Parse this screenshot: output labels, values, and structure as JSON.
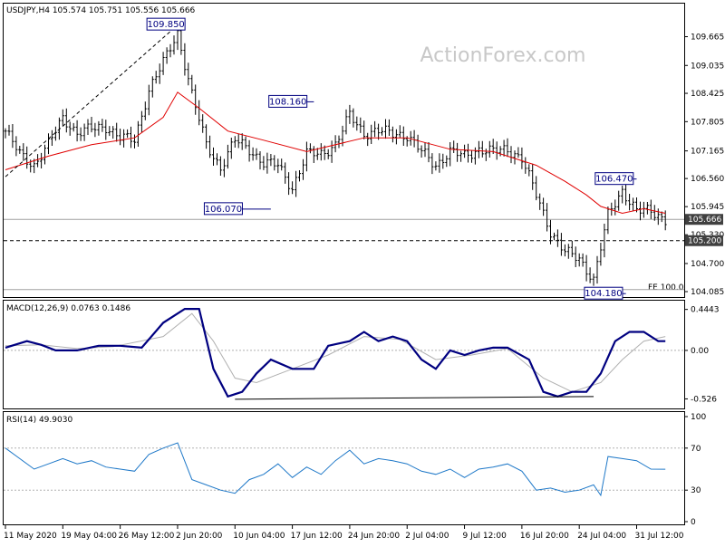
{
  "watermark": "ActionForex.com",
  "price_header": "USDJPY,H4  105.574 105.751 105.556 105.666",
  "macd_header": "MACD(12,26,9) 0.0763 0.1486",
  "rsi_header": "RSI(14) 49.9030",
  "price_axis_ticks": [
    "109.665",
    "109.035",
    "108.425",
    "107.805",
    "107.165",
    "106.560",
    "105.945",
    "105.330",
    "104.700",
    "104.085"
  ],
  "price_tags": {
    "current": "105.666",
    "level": "105.200"
  },
  "fe_label": "FE 100.0",
  "macd_axis_ticks": [
    "0.4443",
    "0.00",
    "-0.526"
  ],
  "rsi_axis_ticks": [
    "100",
    "70",
    "30",
    "0"
  ],
  "x_axis_labels": [
    "11 May 2020",
    "19 May 04:00",
    "26 May 12:00",
    "2 Jun 20:00",
    "10 Jun 04:00",
    "17 Jun 12:00",
    "24 Jun 20:00",
    "2 Jul 04:00",
    "9 Jul 12:00",
    "16 Jul 20:00",
    "24 Jul 04:00",
    "31 Jul 12:00"
  ],
  "callouts": [
    "109.850",
    "108.160",
    "106.070",
    "106.470",
    "104.180"
  ],
  "colors": {
    "ema": "#e00000",
    "macd": "#000080",
    "signal": "#b0b0b0",
    "rsi": "#1e78c8",
    "callout": "#000080"
  },
  "chart_data": {
    "type": "line",
    "title": "USDJPY,H4",
    "ohlc": {
      "open": 105.574,
      "high": 105.751,
      "low": 105.556,
      "close": 105.666
    },
    "ylim": [
      104.085,
      110.19
    ],
    "price_anchors": {
      "x": [
        0,
        4,
        8,
        12,
        16,
        20,
        24,
        28,
        32,
        36,
        40,
        44,
        48,
        52,
        56,
        60,
        64,
        68,
        72,
        76,
        80,
        84,
        88,
        92,
        96,
        100,
        104,
        108,
        112,
        116,
        120,
        124,
        128,
        132,
        136,
        140,
        144,
        148,
        152,
        156,
        160,
        164,
        168,
        172,
        176,
        180,
        184
      ],
      "y": [
        107.6,
        107.1,
        106.85,
        107.3,
        107.9,
        107.55,
        107.65,
        107.7,
        107.45,
        107.4,
        108.5,
        109.1,
        109.75,
        108.4,
        107.3,
        106.8,
        107.4,
        107.2,
        106.9,
        106.85,
        106.35,
        107.1,
        107.1,
        107.3,
        107.95,
        107.55,
        107.6,
        107.55,
        107.5,
        107.15,
        106.85,
        107.15,
        107.05,
        107.2,
        107.15,
        107.2,
        107.0,
        106.2,
        105.4,
        104.95,
        104.8,
        104.35,
        105.75,
        106.3,
        105.85,
        105.85,
        105.666
      ]
    },
    "ema": {
      "x": [
        0,
        12,
        24,
        36,
        44,
        48,
        54,
        62,
        72,
        84,
        100,
        112,
        124,
        136,
        148,
        156,
        162,
        166,
        172,
        178,
        184
      ],
      "y": [
        106.75,
        107.05,
        107.3,
        107.45,
        107.9,
        108.45,
        108.1,
        107.6,
        107.4,
        107.15,
        107.45,
        107.45,
        107.2,
        107.15,
        106.85,
        106.5,
        106.2,
        105.95,
        105.8,
        105.9,
        105.8
      ]
    },
    "callouts": [
      {
        "label": "109.850",
        "value": 109.85
      },
      {
        "label": "108.160",
        "value": 108.16
      },
      {
        "label": "106.070",
        "value": 106.07
      },
      {
        "label": "106.470",
        "value": 106.47
      },
      {
        "label": "104.180",
        "value": 104.18
      }
    ],
    "reference_levels": {
      "horizontal_dashed": 105.2,
      "current_line": 105.666
    },
    "macd": {
      "ylim": [
        -0.6,
        0.5
      ],
      "main": {
        "x": [
          0,
          6,
          10,
          14,
          20,
          26,
          32,
          38,
          44,
          50,
          54,
          58,
          62,
          66,
          70,
          74,
          80,
          86,
          90,
          96,
          100,
          104,
          108,
          112,
          116,
          120,
          124,
          128,
          132,
          136,
          140,
          146,
          150,
          154,
          158,
          162,
          166,
          170,
          174,
          178,
          182,
          184
        ],
        "y": [
          0.03,
          0.1,
          0.06,
          0.0,
          0.0,
          0.05,
          0.05,
          0.03,
          0.3,
          0.45,
          0.45,
          -0.2,
          -0.5,
          -0.45,
          -0.25,
          -0.1,
          -0.2,
          -0.2,
          0.05,
          0.1,
          0.2,
          0.1,
          0.15,
          0.1,
          -0.1,
          -0.2,
          0.0,
          -0.05,
          0.0,
          0.03,
          0.03,
          -0.1,
          -0.45,
          -0.5,
          -0.45,
          -0.45,
          -0.25,
          0.1,
          0.2,
          0.2,
          0.1,
          0.1
        ]
      },
      "signal": {
        "x": [
          0,
          10,
          20,
          30,
          44,
          52,
          58,
          64,
          70,
          80,
          90,
          100,
          110,
          120,
          130,
          140,
          150,
          158,
          166,
          172,
          178,
          184
        ],
        "y": [
          0.05,
          0.06,
          0.02,
          0.04,
          0.15,
          0.4,
          0.1,
          -0.3,
          -0.35,
          -0.2,
          -0.05,
          0.15,
          0.12,
          -0.1,
          -0.05,
          0.02,
          -0.3,
          -0.45,
          -0.35,
          -0.1,
          0.1,
          0.15
        ]
      },
      "trendline": {
        "x": [
          64,
          164
        ],
        "y": [
          -0.53,
          -0.5
        ]
      }
    },
    "rsi": {
      "ylim": [
        0,
        100
      ],
      "levels": [
        70,
        30
      ],
      "values": {
        "x": [
          0,
          4,
          8,
          12,
          16,
          20,
          24,
          28,
          32,
          36,
          40,
          44,
          48,
          52,
          56,
          60,
          64,
          68,
          72,
          76,
          80,
          84,
          88,
          92,
          96,
          100,
          104,
          108,
          112,
          116,
          120,
          124,
          128,
          132,
          136,
          140,
          144,
          148,
          152,
          156,
          160,
          164,
          166,
          168,
          172,
          176,
          180,
          184
        ],
        "y": [
          70,
          60,
          50,
          55,
          60,
          55,
          58,
          52,
          50,
          48,
          64,
          70,
          75,
          40,
          35,
          30,
          27,
          40,
          45,
          55,
          42,
          52,
          45,
          58,
          68,
          55,
          60,
          58,
          55,
          48,
          45,
          50,
          42,
          50,
          52,
          55,
          48,
          30,
          32,
          28,
          30,
          35,
          25,
          62,
          60,
          58,
          50,
          49.9
        ]
      }
    },
    "x_tick_labels": [
      "11 May 2020",
      "19 May 04:00",
      "26 May 12:00",
      "2 Jun 20:00",
      "10 Jun 04:00",
      "17 Jun 12:00",
      "24 Jun 20:00",
      "2 Jul 04:00",
      "9 Jul 12:00",
      "16 Jul 20:00",
      "24 Jul 04:00",
      "31 Jul 12:00"
    ],
    "x_tick_positions": [
      0,
      16,
      32,
      48,
      64,
      80,
      96,
      112,
      128,
      144,
      160,
      176
    ],
    "grid": false
  }
}
